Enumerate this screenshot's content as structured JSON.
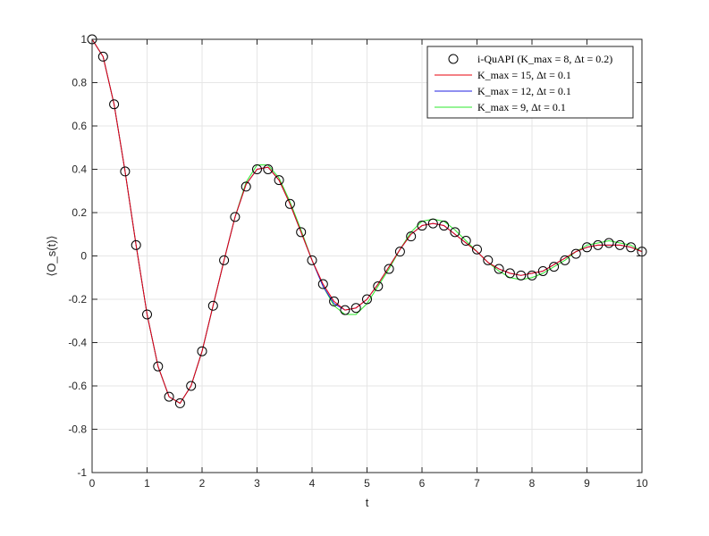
{
  "chart_data": {
    "type": "line",
    "xlabel": "t",
    "ylabel": "⟨O_s(t)⟩",
    "xlim": [
      0,
      10
    ],
    "ylim": [
      -1,
      1
    ],
    "xticks": [
      0,
      1,
      2,
      3,
      4,
      5,
      6,
      7,
      8,
      9,
      10
    ],
    "yticks": [
      -1,
      -0.8,
      -0.6,
      -0.4,
      -0.2,
      0,
      0.2,
      0.4,
      0.6,
      0.8,
      1
    ],
    "xtick_labels": [
      "0",
      "1",
      "2",
      "3",
      "4",
      "5",
      "6",
      "7",
      "8",
      "9",
      "10"
    ],
    "ytick_labels": [
      "-1",
      "-0.8",
      "-0.6",
      "-0.4",
      "-0.2",
      "0",
      "0.2",
      "0.4",
      "0.6",
      "0.8",
      "1"
    ],
    "grid": true,
    "legend_position": "top-right",
    "series": [
      {
        "name": "i-QuAPI (K_max = 8, Δt = 0.2)",
        "style": "markers",
        "marker": "open-circle",
        "color": "#000000",
        "x": [
          0,
          0.2,
          0.4,
          0.6,
          0.8,
          1.0,
          1.2,
          1.4,
          1.6,
          1.8,
          2.0,
          2.2,
          2.4,
          2.6,
          2.8,
          3.0,
          3.2,
          3.4,
          3.6,
          3.8,
          4.0,
          4.2,
          4.4,
          4.6,
          4.8,
          5.0,
          5.2,
          5.4,
          5.6,
          5.8,
          6.0,
          6.2,
          6.4,
          6.6,
          6.8,
          7.0,
          7.2,
          7.4,
          7.6,
          7.8,
          8.0,
          8.2,
          8.4,
          8.6,
          8.8,
          9.0,
          9.2,
          9.4,
          9.6,
          9.8,
          10.0
        ],
        "y": [
          1.0,
          0.92,
          0.7,
          0.39,
          0.05,
          -0.27,
          -0.51,
          -0.65,
          -0.68,
          -0.6,
          -0.44,
          -0.23,
          -0.02,
          0.18,
          0.32,
          0.4,
          0.4,
          0.35,
          0.24,
          0.11,
          -0.02,
          -0.13,
          -0.21,
          -0.25,
          -0.24,
          -0.2,
          -0.14,
          -0.06,
          0.02,
          0.09,
          0.14,
          0.15,
          0.14,
          0.11,
          0.07,
          0.03,
          -0.02,
          -0.06,
          -0.08,
          -0.09,
          -0.09,
          -0.07,
          -0.05,
          -0.02,
          0.01,
          0.04,
          0.05,
          0.06,
          0.05,
          0.04,
          0.02
        ]
      },
      {
        "name": "K_max = 15, Δt = 0.1",
        "style": "line",
        "color": "#e8000b",
        "x": [
          0,
          0.2,
          0.4,
          0.6,
          0.8,
          1.0,
          1.2,
          1.4,
          1.6,
          1.8,
          2.0,
          2.2,
          2.4,
          2.6,
          2.8,
          3.0,
          3.2,
          3.4,
          3.6,
          3.8,
          4.0,
          4.2,
          4.4,
          4.6,
          4.8,
          5.0,
          5.2,
          5.4,
          5.6,
          5.8,
          6.0,
          6.2,
          6.4,
          6.6,
          6.8,
          7.0,
          7.2,
          7.4,
          7.6,
          7.8,
          8.0,
          8.2,
          8.4,
          8.6,
          8.8,
          9.0,
          9.2,
          9.4,
          9.6,
          9.8,
          10.0
        ],
        "y": [
          1.0,
          0.92,
          0.7,
          0.39,
          0.05,
          -0.27,
          -0.51,
          -0.65,
          -0.68,
          -0.6,
          -0.44,
          -0.23,
          -0.02,
          0.18,
          0.33,
          0.4,
          0.41,
          0.35,
          0.24,
          0.11,
          -0.02,
          -0.13,
          -0.21,
          -0.25,
          -0.24,
          -0.2,
          -0.13,
          -0.05,
          0.03,
          0.1,
          0.14,
          0.15,
          0.14,
          0.1,
          0.06,
          0.02,
          -0.03,
          -0.06,
          -0.08,
          -0.09,
          -0.08,
          -0.07,
          -0.04,
          -0.01,
          0.02,
          0.04,
          0.05,
          0.05,
          0.05,
          0.04,
          0.02
        ]
      },
      {
        "name": "K_max = 12, Δt = 0.1",
        "style": "line",
        "color": "#1f1fe0",
        "x": [
          0,
          0.2,
          0.4,
          0.6,
          0.8,
          1.0,
          1.2,
          1.4,
          1.6,
          1.8,
          2.0,
          2.2,
          2.4,
          2.6,
          2.8,
          3.0,
          3.2,
          3.4,
          3.6,
          3.8,
          4.0,
          4.2,
          4.4,
          4.6,
          4.8,
          5.0,
          5.2,
          5.4,
          5.6,
          5.8,
          6.0,
          6.2,
          6.4,
          6.6,
          6.8,
          7.0,
          7.2,
          7.4,
          7.6,
          7.8,
          8.0,
          8.2,
          8.4,
          8.6,
          8.8,
          9.0,
          9.2,
          9.4,
          9.6,
          9.8,
          10.0
        ],
        "y": [
          1.0,
          0.92,
          0.7,
          0.39,
          0.05,
          -0.27,
          -0.51,
          -0.65,
          -0.68,
          -0.6,
          -0.44,
          -0.23,
          -0.02,
          0.18,
          0.33,
          0.4,
          0.41,
          0.35,
          0.24,
          0.11,
          -0.02,
          -0.14,
          -0.22,
          -0.25,
          -0.24,
          -0.2,
          -0.13,
          -0.05,
          0.03,
          0.1,
          0.14,
          0.15,
          0.14,
          0.1,
          0.06,
          0.02,
          -0.03,
          -0.06,
          -0.08,
          -0.09,
          -0.08,
          -0.07,
          -0.04,
          -0.01,
          0.02,
          0.04,
          0.05,
          0.05,
          0.05,
          0.04,
          0.02
        ]
      },
      {
        "name": "K_max = 9, Δt = 0.1",
        "style": "line",
        "color": "#2de82d",
        "x": [
          0,
          0.2,
          0.4,
          0.6,
          0.8,
          1.0,
          1.2,
          1.4,
          1.6,
          1.8,
          2.0,
          2.2,
          2.4,
          2.6,
          2.8,
          3.0,
          3.2,
          3.4,
          3.6,
          3.8,
          4.0,
          4.2,
          4.4,
          4.6,
          4.8,
          5.0,
          5.2,
          5.4,
          5.6,
          5.8,
          6.0,
          6.2,
          6.4,
          6.6,
          6.8,
          7.0,
          7.2,
          7.4,
          7.6,
          7.8,
          8.0,
          8.2,
          8.4,
          8.6,
          8.8,
          9.0,
          9.2,
          9.4,
          9.6,
          9.8,
          10.0
        ],
        "y": [
          1.0,
          0.92,
          0.7,
          0.39,
          0.05,
          -0.27,
          -0.51,
          -0.65,
          -0.68,
          -0.6,
          -0.44,
          -0.23,
          -0.02,
          0.18,
          0.34,
          0.42,
          0.42,
          0.36,
          0.25,
          0.12,
          -0.02,
          -0.14,
          -0.23,
          -0.27,
          -0.27,
          -0.22,
          -0.14,
          -0.06,
          0.03,
          0.11,
          0.16,
          0.17,
          0.16,
          0.12,
          0.07,
          0.02,
          -0.03,
          -0.07,
          -0.1,
          -0.11,
          -0.1,
          -0.08,
          -0.05,
          -0.02,
          0.02,
          0.05,
          0.06,
          0.07,
          0.06,
          0.05,
          0.02
        ]
      }
    ]
  }
}
